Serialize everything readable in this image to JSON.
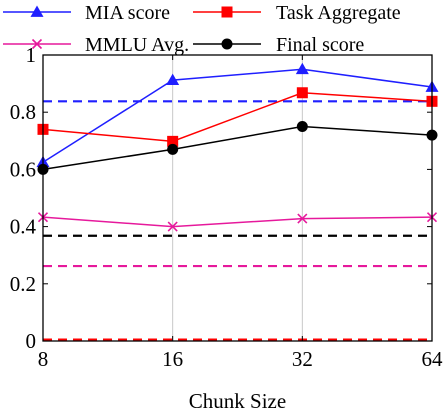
{
  "chart_data": {
    "type": "line",
    "xlabel": "Chunk Size",
    "ylabel": "",
    "x": [
      "8",
      "16",
      "32",
      "64"
    ],
    "ylim": [
      0,
      1
    ],
    "y_ticks": [
      "0",
      "0.2",
      "0.4",
      "0.6",
      "0.8",
      "1"
    ],
    "grid": "vertical",
    "legend_position": "top",
    "series": [
      {
        "name": "MIA score",
        "color": "#1f1fff",
        "marker": "triangle",
        "values": [
          0.625,
          0.912,
          0.95,
          0.888
        ]
      },
      {
        "name": "Task Aggregate",
        "color": "#ff0000",
        "marker": "square",
        "values": [
          0.74,
          0.698,
          0.868,
          0.838
        ]
      },
      {
        "name": "MMLU Avg.",
        "color": "#e6199c",
        "marker": "x",
        "values": [
          0.433,
          0.4,
          0.428,
          0.433
        ]
      },
      {
        "name": "Final score",
        "color": "#000000",
        "marker": "circle",
        "values": [
          0.6,
          0.67,
          0.75,
          0.72
        ]
      }
    ],
    "baselines": [
      {
        "color": "#1f1fff",
        "value": 0.838
      },
      {
        "color": "#000000",
        "value": 0.368
      },
      {
        "color": "#e6199c",
        "value": 0.262
      },
      {
        "color": "#ff0000",
        "value": 0.005
      }
    ]
  }
}
